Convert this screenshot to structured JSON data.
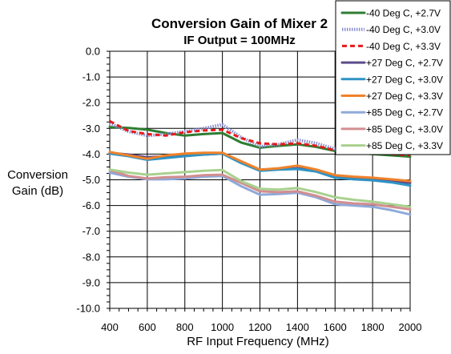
{
  "chart_data": {
    "type": "line",
    "title": "Conversion Gain of Mixer 2",
    "subtitle": "IF Output = 100MHz",
    "xlabel": "RF Input Frequency (MHz)",
    "ylabel_line1": "Conversion",
    "ylabel_line2": "Gain (dB)",
    "xlim": [
      400,
      2000
    ],
    "ylim": [
      -10,
      0
    ],
    "grid": true,
    "legend_position": "top-right",
    "x_ticks": [
      "400",
      "600",
      "800",
      "1000",
      "1200",
      "1400",
      "1600",
      "1800",
      "2000"
    ],
    "y_ticks": [
      "0.0",
      "-1.0",
      "-2.0",
      "-3.0",
      "-4.0",
      "-5.0",
      "-6.0",
      "-7.0",
      "-8.0",
      "-9.0",
      "-10.0"
    ],
    "x": [
      400,
      500,
      600,
      700,
      800,
      900,
      1000,
      1100,
      1200,
      1300,
      1400,
      1500,
      1600,
      1700,
      1800,
      1900,
      2000
    ],
    "series": [
      {
        "name": "-40 Deg C, +2.7V",
        "color": "#2e7d32",
        "style": "solid",
        "values": [
          -2.95,
          -2.98,
          -3.05,
          -3.18,
          -3.28,
          -3.22,
          -3.18,
          -3.55,
          -3.75,
          -3.68,
          -3.62,
          -3.72,
          -3.88,
          -3.95,
          -4.0,
          -4.05,
          -4.1
        ]
      },
      {
        "name": "-40 Deg C, +3.0V",
        "color": "#8a8fd0",
        "style": "dotted",
        "values": [
          -2.8,
          -3.12,
          -3.28,
          -3.22,
          -3.12,
          -3.0,
          -2.85,
          -3.35,
          -3.7,
          -3.62,
          -3.45,
          -3.58,
          -3.8,
          -3.85,
          -3.9,
          -3.95,
          -4.0
        ]
      },
      {
        "name": "-40 Deg C, +3.3V",
        "color": "#e8191a",
        "style": "dashed",
        "values": [
          -2.72,
          -3.1,
          -3.22,
          -3.28,
          -3.15,
          -3.08,
          -3.05,
          -3.38,
          -3.58,
          -3.62,
          -3.58,
          -3.68,
          -3.85,
          -3.9,
          -3.95,
          -4.0,
          -4.05
        ]
      },
      {
        "name": "+27 Deg C, +2.7V",
        "color": "#5c4c8a",
        "style": "solid",
        "values": [
          -3.95,
          -4.02,
          -4.12,
          -4.08,
          -4.05,
          -4.02,
          -3.98,
          -4.32,
          -4.62,
          -4.58,
          -4.55,
          -4.65,
          -4.88,
          -4.95,
          -4.98,
          -5.05,
          -5.12
        ]
      },
      {
        "name": "+27 Deg C, +3.0V",
        "color": "#2f93c4",
        "style": "solid",
        "values": [
          -3.98,
          -4.08,
          -4.22,
          -4.15,
          -4.08,
          -4.02,
          -3.98,
          -4.35,
          -4.65,
          -4.6,
          -4.58,
          -4.68,
          -4.92,
          -4.98,
          -5.02,
          -5.1,
          -5.22
        ]
      },
      {
        "name": "+27 Deg C, +3.3V",
        "color": "#f0822a",
        "style": "solid",
        "values": [
          -3.92,
          -4.05,
          -4.18,
          -4.05,
          -3.98,
          -3.95,
          -3.95,
          -4.28,
          -4.6,
          -4.55,
          -4.45,
          -4.6,
          -4.82,
          -4.88,
          -4.92,
          -4.98,
          -5.05
        ]
      },
      {
        "name": "+85 Deg C, +2.7V",
        "color": "#8fa9d9",
        "style": "solid",
        "values": [
          -4.72,
          -4.88,
          -4.98,
          -4.98,
          -4.95,
          -4.88,
          -4.85,
          -5.25,
          -5.58,
          -5.55,
          -5.5,
          -5.68,
          -5.95,
          -6.0,
          -6.05,
          -6.18,
          -6.35
        ]
      },
      {
        "name": "+85 Deg C, +3.0V",
        "color": "#d28e90",
        "style": "solid",
        "values": [
          -4.62,
          -4.85,
          -4.95,
          -4.9,
          -4.88,
          -4.82,
          -4.8,
          -5.12,
          -5.45,
          -5.48,
          -5.45,
          -5.62,
          -5.85,
          -5.92,
          -5.95,
          -6.05,
          -6.15
        ]
      },
      {
        "name": "+85 Deg C, +3.3V",
        "color": "#a9d18e",
        "style": "solid",
        "values": [
          -4.6,
          -4.72,
          -4.8,
          -4.75,
          -4.7,
          -4.65,
          -4.62,
          -5.05,
          -5.35,
          -5.38,
          -5.32,
          -5.48,
          -5.68,
          -5.78,
          -5.85,
          -5.95,
          -6.05
        ]
      }
    ]
  }
}
